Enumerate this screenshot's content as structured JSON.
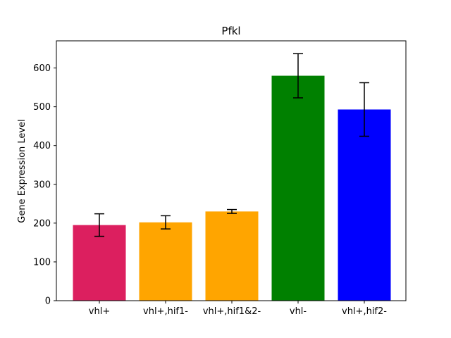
{
  "chart_data": {
    "type": "bar",
    "title": "Pfkl",
    "xlabel": "",
    "ylabel": "Gene Expression Level",
    "categories": [
      "vhl+",
      "vhl+,hif1-",
      "vhl+,hif1&2-",
      "vhl-",
      "vhl+,hif2-"
    ],
    "values": [
      195,
      202,
      230,
      580,
      493
    ],
    "errors": [
      29,
      17,
      5,
      57,
      69
    ],
    "colors": [
      "#DC1F5F",
      "#FFA500",
      "#FFA500",
      "#008000",
      "#0000FF"
    ],
    "ylim": [
      0,
      670
    ],
    "yticks": [
      0,
      100,
      200,
      300,
      400,
      500,
      600
    ],
    "grid": false
  }
}
